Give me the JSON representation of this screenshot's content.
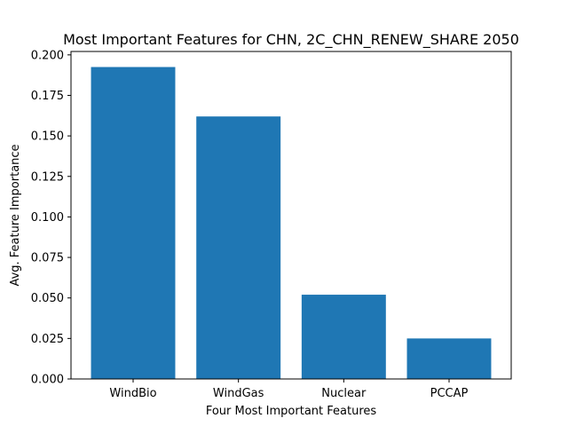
{
  "chart_data": {
    "type": "bar",
    "title": "Most Important Features for CHN, 2C_CHN_RENEW_SHARE 2050",
    "xlabel": "Four Most Important Features",
    "ylabel": "Avg. Feature Importance",
    "categories": [
      "WindBio",
      "WindGas",
      "Nuclear",
      "PCCAP"
    ],
    "values": [
      0.1925,
      0.162,
      0.052,
      0.025
    ],
    "ylim": [
      0,
      0.2021
    ],
    "yticks": [
      0.0,
      0.025,
      0.05,
      0.075,
      0.1,
      0.125,
      0.15,
      0.175,
      0.2
    ],
    "ytick_labels": [
      "0.000",
      "0.025",
      "0.050",
      "0.075",
      "0.100",
      "0.125",
      "0.150",
      "0.175",
      "0.200"
    ],
    "bar_color": "#1f77b4",
    "grid": false,
    "legend": "none"
  }
}
